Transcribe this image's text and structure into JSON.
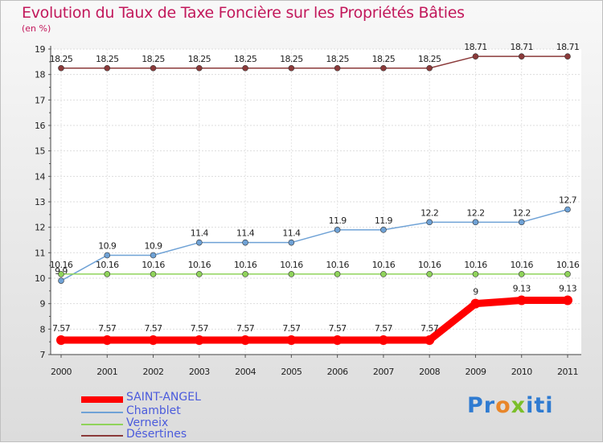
{
  "title": "Evolution du Taux de Taxe Foncière sur les Propriétés Bâties",
  "unit": "(en %)",
  "logo": {
    "part1": "Pr",
    "part2": "o",
    "part3": "x",
    "part4": "iti"
  },
  "chart_data": {
    "type": "line",
    "title": "Evolution du Taux de Taxe Foncière sur les Propriétés Bâties",
    "ylabel": "(en %)",
    "xlabel": "",
    "ylim": [
      7,
      19
    ],
    "yticks": [
      "7",
      "8",
      "9",
      "10",
      "11",
      "12",
      "13",
      "14",
      "15",
      "16",
      "17",
      "18",
      "19"
    ],
    "categories": [
      "2000",
      "2001",
      "2002",
      "2003",
      "2004",
      "2005",
      "2006",
      "2007",
      "2008",
      "2009",
      "2010",
      "2011"
    ],
    "series": [
      {
        "name": "Désertines",
        "color": "#8b3a3a",
        "values": [
          18.25,
          18.25,
          18.25,
          18.25,
          18.25,
          18.25,
          18.25,
          18.25,
          18.25,
          18.71,
          18.71,
          18.71
        ],
        "labels": [
          "18.25",
          "18.25",
          "18.25",
          "18.25",
          "18.25",
          "18.25",
          "18.25",
          "18.25",
          "18.25",
          "18.71",
          "18.71",
          "18.71"
        ]
      },
      {
        "name": "Chamblet",
        "color": "#6fa2d6",
        "values": [
          9.9,
          10.9,
          10.9,
          11.4,
          11.4,
          11.4,
          11.9,
          11.9,
          12.2,
          12.2,
          12.2,
          12.7
        ],
        "labels": [
          "9.9",
          "10.9",
          "10.9",
          "11.4",
          "11.4",
          "11.4",
          "11.9",
          "11.9",
          "12.2",
          "12.2",
          "12.2",
          "12.7"
        ]
      },
      {
        "name": "Verneix",
        "color": "#8fd35a",
        "values": [
          10.16,
          10.16,
          10.16,
          10.16,
          10.16,
          10.16,
          10.16,
          10.16,
          10.16,
          10.16,
          10.16,
          10.16
        ],
        "labels": [
          "10.16",
          "10.16",
          "10.16",
          "10.16",
          "10.16",
          "10.16",
          "10.16",
          "10.16",
          "10.16",
          "10.16",
          "10.16",
          "10.16"
        ]
      },
      {
        "name": "SAINT-ANGEL",
        "color": "#ff0000",
        "values": [
          7.57,
          7.57,
          7.57,
          7.57,
          7.57,
          7.57,
          7.57,
          7.57,
          7.57,
          9.0,
          9.13,
          9.13
        ],
        "labels": [
          "7.57",
          "7.57",
          "7.57",
          "7.57",
          "7.57",
          "7.57",
          "7.57",
          "7.57",
          "7.57",
          "9",
          "9.13",
          "9.13"
        ]
      }
    ],
    "legend": [
      "SAINT-ANGEL",
      "Chamblet",
      "Verneix",
      "Désertines"
    ]
  }
}
